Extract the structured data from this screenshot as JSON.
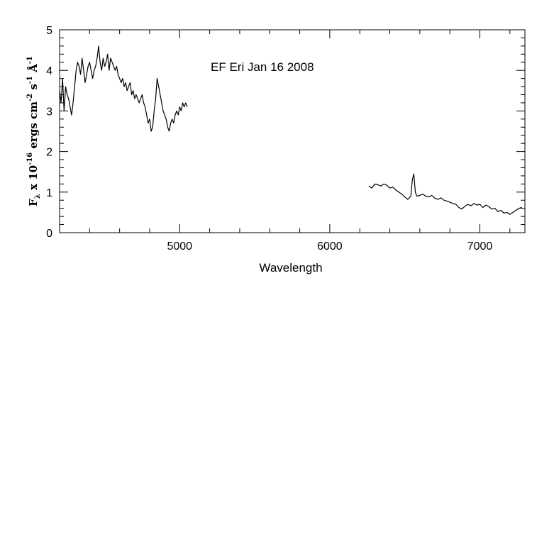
{
  "chart_data": {
    "type": "line",
    "title": "",
    "annotation": "EF Eri Jan 16 2008",
    "xlabel": "Wavelength",
    "ylabel": {
      "main": "F",
      "sub": "λ",
      "mid": " x 10",
      "exp1": "-16",
      "after1": " ergs cm",
      "exp2": "-2",
      "after2": " s",
      "exp3": "-1",
      "after3": " Å",
      "exp4": "-1"
    },
    "xlim": [
      4200,
      7300
    ],
    "ylim": [
      0,
      5
    ],
    "xticks": [
      5000,
      6000,
      7000
    ],
    "yticks": [
      0,
      1,
      2,
      3,
      4,
      5
    ],
    "x_minor_step": 200,
    "y_minor_step": 0.2,
    "grid": false,
    "series": [
      {
        "segments": [
          {
            "x": [
              4200,
              4210,
              4220,
              4230,
              4240,
              4250,
              4260,
              4270,
              4280,
              4290,
              4300,
              4310,
              4320,
              4330,
              4340,
              4350,
              4360,
              4370,
              4380,
              4390,
              4400,
              4410,
              4420,
              4430,
              4440,
              4450,
              4460,
              4470,
              4480,
              4490,
              4500,
              4510,
              4520,
              4530,
              4540,
              4550,
              4560,
              4570,
              4580,
              4590,
              4600,
              4610,
              4620,
              4630,
              4640,
              4650,
              4660,
              4670,
              4680,
              4690,
              4700,
              4710,
              4720,
              4730,
              4740,
              4750,
              4760,
              4770,
              4780,
              4790,
              4800,
              4810,
              4820,
              4830,
              4840,
              4850,
              4860,
              4870,
              4880,
              4890,
              4900,
              4910,
              4920,
              4930,
              4940,
              4950,
              4960,
              4970,
              4980,
              4990,
              5000,
              5010,
              5020,
              5030,
              5040,
              5050
            ],
            "y": [
              3.5,
              3.2,
              3.8,
              3.0,
              3.6,
              3.4,
              3.3,
              3.1,
              2.9,
              3.2,
              3.6,
              4.0,
              4.2,
              4.1,
              3.9,
              4.3,
              4.0,
              3.7,
              3.9,
              4.1,
              4.2,
              4.0,
              3.8,
              4.0,
              4.1,
              4.3,
              4.6,
              4.2,
              4.0,
              4.3,
              4.1,
              4.2,
              4.4,
              4.0,
              4.3,
              4.2,
              4.1,
              4.0,
              4.1,
              3.9,
              3.8,
              3.7,
              3.8,
              3.6,
              3.7,
              3.5,
              3.6,
              3.7,
              3.4,
              3.5,
              3.3,
              3.4,
              3.3,
              3.2,
              3.3,
              3.4,
              3.2,
              3.1,
              2.9,
              2.7,
              2.8,
              2.5,
              2.6,
              3.0,
              3.3,
              3.8,
              3.6,
              3.4,
              3.2,
              3.0,
              2.9,
              2.8,
              2.6,
              2.5,
              2.7,
              2.8,
              2.7,
              2.9,
              3.0,
              2.9,
              3.1,
              3.0,
              3.2,
              3.1,
              3.2,
              3.1
            ]
          },
          {
            "x": [
              6260,
              6280,
              6300,
              6320,
              6340,
              6360,
              6380,
              6400,
              6420,
              6440,
              6460,
              6480,
              6500,
              6520,
              6540,
              6550,
              6560,
              6570,
              6580,
              6600,
              6620,
              6640,
              6660,
              6680,
              6700,
              6720,
              6740,
              6760,
              6780,
              6800,
              6820,
              6840,
              6860,
              6880,
              6900,
              6920,
              6940,
              6960,
              6980,
              7000,
              7020,
              7040,
              7060,
              7080,
              7100,
              7120,
              7140,
              7160,
              7180,
              7200,
              7220,
              7240,
              7260,
              7280
            ],
            "y": [
              1.15,
              1.1,
              1.2,
              1.18,
              1.15,
              1.2,
              1.17,
              1.1,
              1.12,
              1.05,
              1.0,
              0.95,
              0.88,
              0.82,
              0.9,
              1.3,
              1.45,
              1.0,
              0.9,
              0.92,
              0.95,
              0.9,
              0.88,
              0.92,
              0.85,
              0.82,
              0.86,
              0.8,
              0.78,
              0.75,
              0.72,
              0.7,
              0.62,
              0.58,
              0.65,
              0.7,
              0.66,
              0.72,
              0.68,
              0.7,
              0.62,
              0.68,
              0.64,
              0.58,
              0.6,
              0.52,
              0.55,
              0.48,
              0.5,
              0.45,
              0.5,
              0.55,
              0.6,
              0.62
            ]
          }
        ]
      }
    ]
  }
}
